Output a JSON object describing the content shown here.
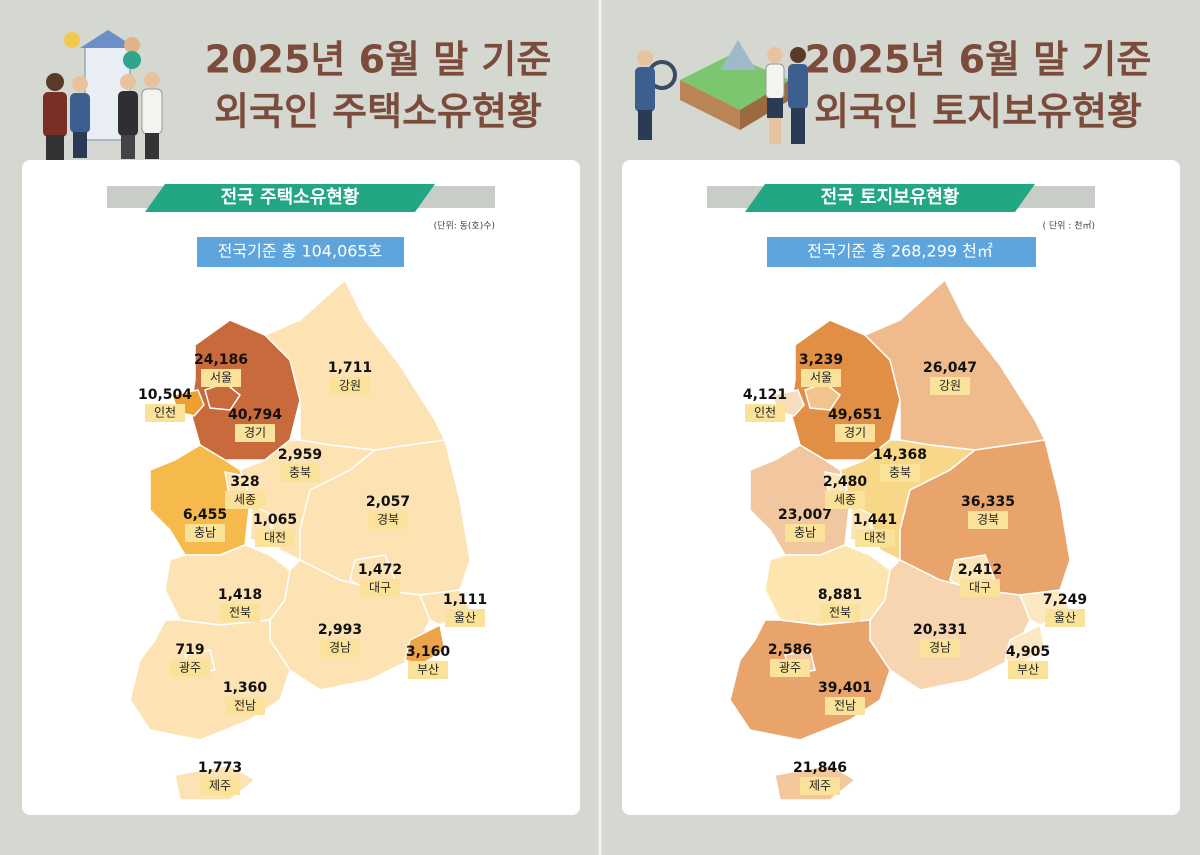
{
  "panels": [
    {
      "title_lines": [
        "2025년 6월 말 기준",
        "외국인 주택소유현황"
      ],
      "banner": "전국 주택소유현황",
      "unit": "(단위: 동(호)수)",
      "total": "전국기준 총  104,065호",
      "regions": [
        {
          "name": "경기",
          "value": "40,794",
          "color": "#c96a3d"
        },
        {
          "name": "서울",
          "value": "24,186",
          "color": "#c96a3d"
        },
        {
          "name": "인천",
          "value": "10,504",
          "color": "#ef9f2e"
        },
        {
          "name": "강원",
          "value": "1,711",
          "color": "#fde3b3"
        },
        {
          "name": "충북",
          "value": "2,959",
          "color": "#fde3b3"
        },
        {
          "name": "충남",
          "value": "6,455",
          "color": "#f5b94c"
        },
        {
          "name": "세종",
          "value": "328",
          "color": "#fde3b3"
        },
        {
          "name": "대전",
          "value": "1,065",
          "color": "#fde3b3"
        },
        {
          "name": "경북",
          "value": "2,057",
          "color": "#fde3b3"
        },
        {
          "name": "대구",
          "value": "1,472",
          "color": "#fde3b3"
        },
        {
          "name": "전북",
          "value": "1,418",
          "color": "#fde3b3"
        },
        {
          "name": "경남",
          "value": "2,993",
          "color": "#fde3b3"
        },
        {
          "name": "울산",
          "value": "1,111",
          "color": "#fde3b3"
        },
        {
          "name": "부산",
          "value": "3,160",
          "color": "#eda34a"
        },
        {
          "name": "전남",
          "value": "1,360",
          "color": "#fde3b3"
        },
        {
          "name": "광주",
          "value": "719",
          "color": "#fde3b3"
        },
        {
          "name": "제주",
          "value": "1,773",
          "color": "#fde3b3"
        }
      ]
    },
    {
      "title_lines": [
        "2025년 6월 말 기준",
        "외국인 토지보유현황"
      ],
      "banner": "전국 토지보유현황",
      "unit": "( 단위 : 천㎡)",
      "total": "전국기준 총 268,299 천㎡",
      "regions": [
        {
          "name": "경기",
          "value": "49,651",
          "color": "#e08f45"
        },
        {
          "name": "서울",
          "value": "3,239",
          "color": "#f1c48e"
        },
        {
          "name": "인천",
          "value": "4,121",
          "color": "#f7dcc0"
        },
        {
          "name": "강원",
          "value": "26,047",
          "color": "#efbb8c"
        },
        {
          "name": "충북",
          "value": "14,368",
          "color": "#f8d888"
        },
        {
          "name": "충남",
          "value": "23,007",
          "color": "#f2c7a0"
        },
        {
          "name": "세종",
          "value": "2,480",
          "color": "#fbe6b8"
        },
        {
          "name": "대전",
          "value": "1,441",
          "color": "#fbe6b8"
        },
        {
          "name": "경북",
          "value": "36,335",
          "color": "#e8a46a"
        },
        {
          "name": "대구",
          "value": "2,412",
          "color": "#fbe6b8"
        },
        {
          "name": "전북",
          "value": "8,881",
          "color": "#fde5b0"
        },
        {
          "name": "경남",
          "value": "20,331",
          "color": "#f7d5b0"
        },
        {
          "name": "울산",
          "value": "7,249",
          "color": "#fde8c4"
        },
        {
          "name": "부산",
          "value": "4,905",
          "color": "#fde8c4"
        },
        {
          "name": "전남",
          "value": "39,401",
          "color": "#e8a46a"
        },
        {
          "name": "광주",
          "value": "2,586",
          "color": "#f4c9a2"
        },
        {
          "name": "제주",
          "value": "21,846",
          "color": "#f3c69c"
        }
      ]
    }
  ]
}
